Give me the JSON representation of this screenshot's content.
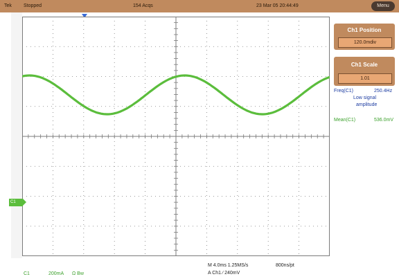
{
  "topbar": {
    "tek": "Tek",
    "run_state": "Stopped",
    "acqs": "154 Acqs",
    "datetime": "23 Mar 05 20:44:49",
    "menu_label": "Menu"
  },
  "channel_marker": "C1",
  "side_panel": {
    "position_title": "Ch1 Position",
    "position_value": "120.0mdiv",
    "scale_title": "Ch1 Scale",
    "scale_value": "1.01"
  },
  "measurements": {
    "freq_label": "Freq(C1)",
    "freq_value": "250.4Hz",
    "freq_note_1": "Low signal",
    "freq_note_2": "amplitude",
    "mean_label": "Mean(C1)",
    "mean_value": "536.0mV"
  },
  "bottom": {
    "ch_label": "C1",
    "ch_scale": "200mA",
    "ch_coupling": "Ω  Bw",
    "timebase": "M 4.0ms 1.25MS/s",
    "record": "800ns/pt",
    "trigger": "A  Ch1  ∕  240mV"
  },
  "colors": {
    "trace": "#5bbd3c",
    "panel": "#c08a5e",
    "panel_value": "#e8a774",
    "grid": "#7a7a7a"
  }
}
